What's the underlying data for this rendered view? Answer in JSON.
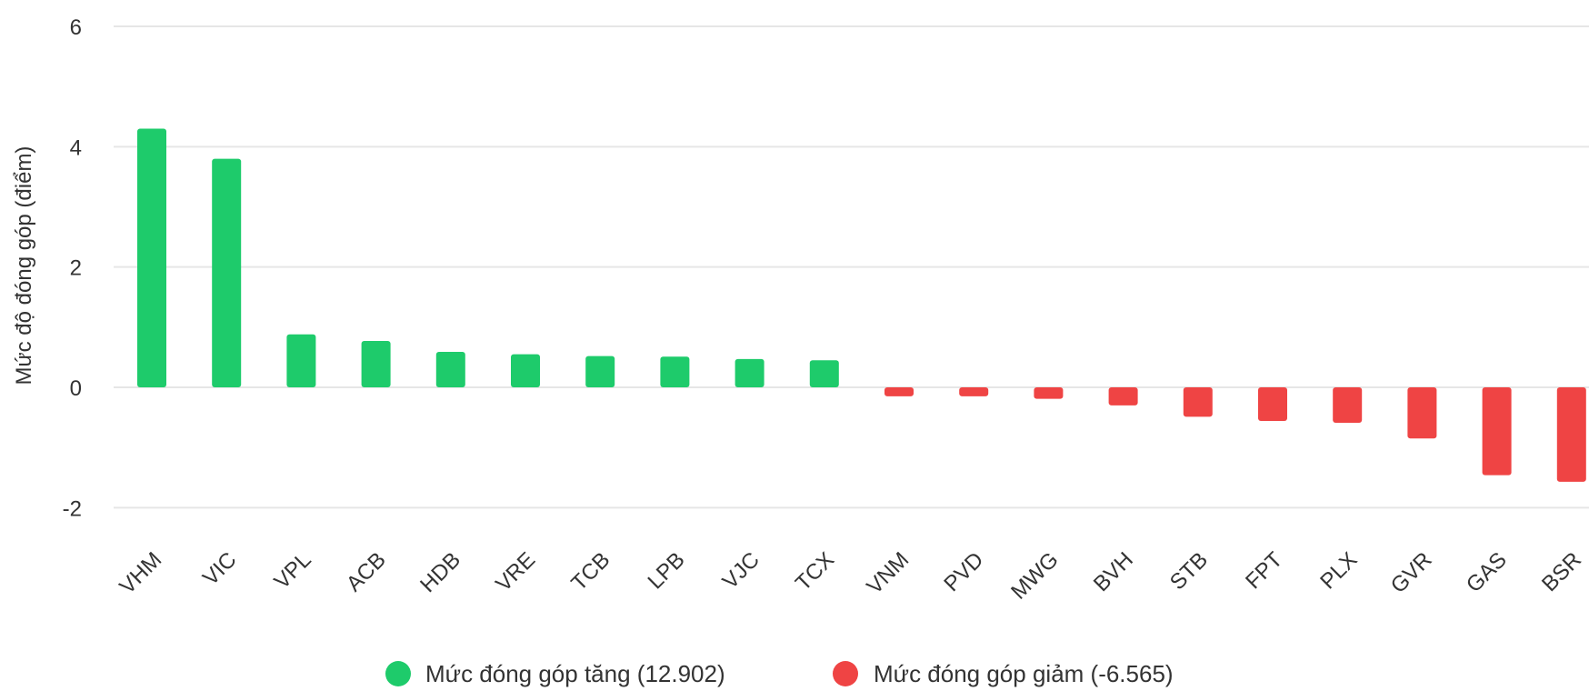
{
  "chart_data": {
    "type": "bar",
    "ylabel": "Mức độ đóng góp (điểm)",
    "ylim": [
      -2,
      6
    ],
    "yticks": [
      6,
      4,
      2,
      0,
      -2
    ],
    "grid": true,
    "legend_position": "bottom-center",
    "categories": [
      "VHM",
      "VIC",
      "VPL",
      "ACB",
      "HDB",
      "VRE",
      "TCB",
      "LPB",
      "VJC",
      "TCX",
      "VNM",
      "PVD",
      "MWG",
      "BVH",
      "STB",
      "FPT",
      "PLX",
      "GVR",
      "GAS",
      "BSR"
    ],
    "values": [
      4.3,
      3.8,
      0.88,
      0.77,
      0.59,
      0.55,
      0.52,
      0.51,
      0.47,
      0.45,
      -0.15,
      -0.15,
      -0.19,
      -0.3,
      -0.49,
      -0.56,
      -0.59,
      -0.85,
      -1.46,
      -1.57
    ],
    "series": [
      {
        "name": "Mức đóng góp tăng (12.902)",
        "color": "#1ecb6b"
      },
      {
        "name": "Mức đóng góp giảm (-6.565)",
        "color": "#ef4444"
      }
    ]
  }
}
